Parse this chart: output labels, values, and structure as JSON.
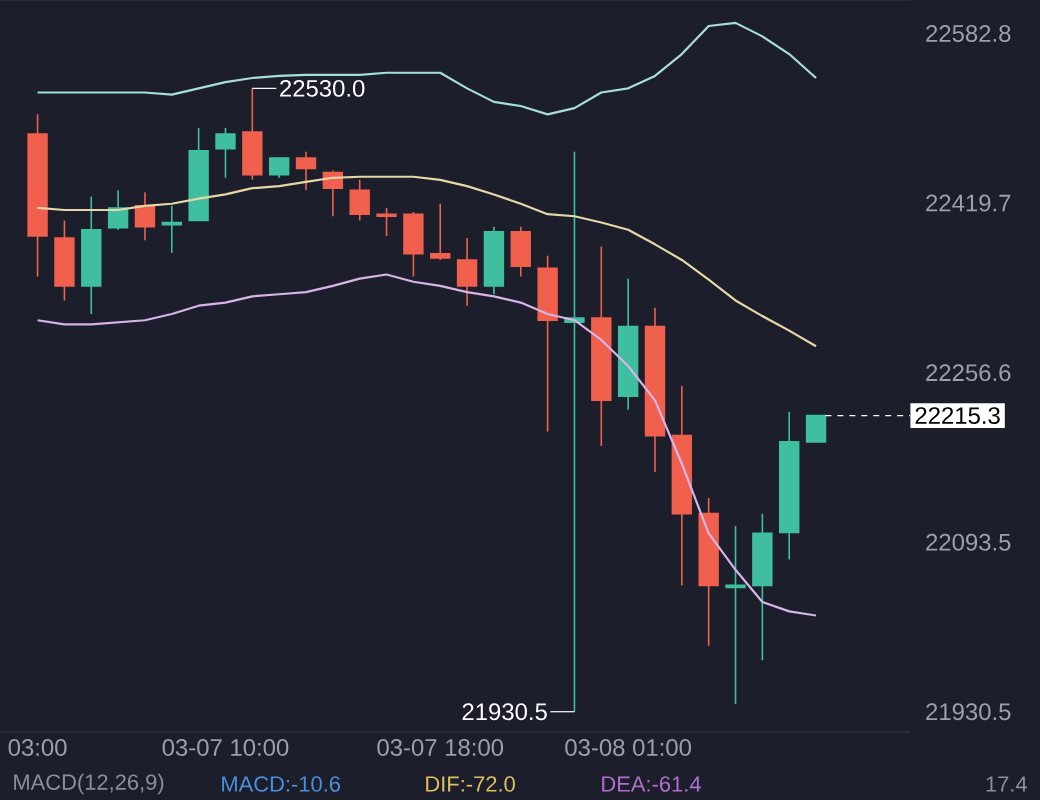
{
  "chart_data": {
    "type": "candlestick",
    "categories": [
      "03:00",
      null,
      null,
      null,
      null,
      null,
      null,
      "03-07 10:00",
      null,
      null,
      null,
      null,
      null,
      null,
      null,
      "03-07 18:00",
      null,
      null,
      null,
      null,
      null,
      null,
      "03-08 01:00",
      null,
      null,
      null,
      null,
      null,
      null,
      null
    ],
    "ohlc": [
      [
        22486,
        22505,
        22349,
        22388
      ],
      [
        22386,
        22403,
        22326,
        22340
      ],
      [
        22340,
        22426,
        22313,
        22394
      ],
      [
        22396,
        22432,
        22394,
        22415
      ],
      [
        22417,
        22430,
        22384,
        22397
      ],
      [
        22399,
        22417,
        22372,
        22401
      ],
      [
        22403,
        22492,
        22403,
        22470
      ],
      [
        22472,
        22492,
        22444,
        22486
      ],
      [
        22488,
        22530.0,
        22442,
        22447
      ],
      [
        22447,
        22463,
        22444,
        22463
      ],
      [
        22463,
        22469,
        22432,
        22453
      ],
      [
        22449,
        22451,
        22407,
        22434
      ],
      [
        22432,
        22442,
        22403,
        22409
      ],
      [
        22409,
        22415,
        22388,
        22407
      ],
      [
        22409,
        22411,
        22349,
        22371
      ],
      [
        22371,
        22419,
        22365,
        22367
      ],
      [
        22365,
        22386,
        22321,
        22340
      ],
      [
        22340,
        22397,
        22332,
        22392
      ],
      [
        22392,
        22397,
        22349,
        22359
      ],
      [
        22357,
        22369,
        22200,
        22307
      ],
      [
        22305,
        22469,
        21930.5,
        22309
      ],
      [
        22309,
        22378,
        22186,
        22230
      ],
      [
        22234,
        22347,
        22221,
        22301
      ],
      [
        22301,
        22319,
        22161,
        22196
      ],
      [
        22196,
        22244,
        22052,
        22121
      ],
      [
        22121,
        22136,
        21994,
        22052
      ],
      [
        22050,
        22109,
        21938,
        22052
      ],
      [
        22052,
        22121,
        21980,
        22102
      ],
      [
        22103,
        22219,
        22077,
        22190
      ],
      [
        22190,
        22215.3,
        22190,
        22215.3
      ]
    ],
    "colors": [
      "#f0604d",
      "#f0604d",
      "#3fbf9f",
      "#3fbf9f",
      "#f0604d",
      "#3fbf9f",
      "#3fbf9f",
      "#3fbf9f",
      "#f0604d",
      "#3fbf9f",
      "#f0604d",
      "#f0604d",
      "#f0604d",
      "#f0604d",
      "#f0604d",
      "#f0604d",
      "#f0604d",
      "#3fbf9f",
      "#f0604d",
      "#f0604d",
      "#3fbf9f",
      "#f0604d",
      "#3fbf9f",
      "#f0604d",
      "#f0604d",
      "#f0604d",
      "#3fbf9f",
      "#3fbf9f",
      "#3fbf9f",
      "#3fbf9f"
    ],
    "series": [
      {
        "type": "line",
        "color": "#a8dde0",
        "values": [
          22526,
          22526,
          22526,
          22526,
          22526,
          22524,
          22530,
          22536,
          22540,
          22542,
          22543,
          22543,
          22543,
          22545,
          22545,
          22545,
          22530,
          22517,
          22513,
          22505,
          22511,
          22526,
          22530,
          22542,
          22563,
          22590,
          22593,
          22580,
          22563,
          22540
        ]
      },
      {
        "type": "line",
        "color": "#e6d7a8",
        "values": [
          22415,
          22413,
          22413,
          22413,
          22417,
          22419,
          22424,
          22428,
          22434,
          22436,
          22440,
          22444,
          22445,
          22445,
          22445,
          22442,
          22436,
          22428,
          22419,
          22409,
          22407,
          22401,
          22394,
          22380,
          22365,
          22346,
          22326,
          22311,
          22297,
          22282
        ]
      },
      {
        "type": "line",
        "color": "#d8b4e8",
        "values": [
          22307,
          22303,
          22303,
          22305,
          22307,
          22313,
          22321,
          22324,
          22330,
          22332,
          22334,
          22340,
          22347,
          22351,
          22344,
          22340,
          22334,
          22330,
          22324,
          22313,
          22307,
          22288,
          22263,
          22230,
          22169,
          22102,
          22067,
          22036,
          22027,
          22023
        ]
      }
    ],
    "ylim": [
      21911,
      22615
    ],
    "yticks": [
      21930.5,
      22093.5,
      22256.6,
      22419.7,
      22582.8
    ],
    "ref_lines": [
      {
        "axis": "y",
        "value": 22215.3,
        "label": "22215.3",
        "color": "#ffffff",
        "line_style": "dashed"
      }
    ],
    "annotations": [
      "22530.0",
      "21930.5",
      "MACD(12,26,9)",
      "MACD:-10.6",
      "DIF:-72.0",
      "DEA:-61.4",
      "17.4"
    ]
  }
}
